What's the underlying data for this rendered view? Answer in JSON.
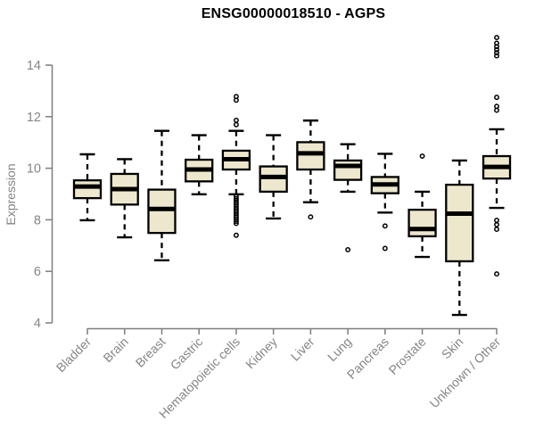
{
  "chart_data": {
    "type": "boxplot",
    "title": "ENSG00000018510 - AGPS",
    "ylabel": "Expression",
    "xlabel": "",
    "ylim": [
      4,
      15.4
    ],
    "yticks": [
      4,
      6,
      8,
      10,
      12,
      14
    ],
    "grid": "off",
    "legend": "none",
    "categories": [
      "Bladder",
      "Brain",
      "Breast",
      "Gastric",
      "Hematopoietic cells",
      "Kidney",
      "Liver",
      "Lung",
      "Pancreas",
      "Prostate",
      "Skin",
      "Unknown / Other"
    ],
    "series": [
      {
        "name": "Bladder",
        "whisker_low": 7.98,
        "q1": 8.84,
        "median": 9.29,
        "q3": 9.53,
        "whisker_high": 10.54,
        "outliers": []
      },
      {
        "name": "Brain",
        "whisker_low": 7.32,
        "q1": 8.59,
        "median": 9.19,
        "q3": 9.78,
        "whisker_high": 10.35,
        "outliers": []
      },
      {
        "name": "Breast",
        "whisker_low": 6.43,
        "q1": 7.49,
        "median": 8.42,
        "q3": 9.17,
        "whisker_high": 11.45,
        "outliers": []
      },
      {
        "name": "Gastric",
        "whisker_low": 8.99,
        "q1": 9.49,
        "median": 9.95,
        "q3": 10.33,
        "whisker_high": 11.28,
        "outliers": []
      },
      {
        "name": "Hematopoietic cells",
        "whisker_low": 8.99,
        "q1": 9.95,
        "median": 10.35,
        "q3": 10.68,
        "whisker_high": 11.45,
        "outliers": [
          12.78,
          12.64,
          11.86,
          11.69,
          8.9,
          8.82,
          8.74,
          8.66,
          8.58,
          8.5,
          8.42,
          8.34,
          8.26,
          8.18,
          8.1,
          8.02,
          7.94,
          7.86,
          7.4
        ]
      },
      {
        "name": "Kidney",
        "whisker_low": 8.05,
        "q1": 9.09,
        "median": 9.66,
        "q3": 10.07,
        "whisker_high": 11.28,
        "outliers": []
      },
      {
        "name": "Liver",
        "whisker_low": 8.68,
        "q1": 9.95,
        "median": 10.58,
        "q3": 11.01,
        "whisker_high": 11.85,
        "outliers": [
          8.11
        ]
      },
      {
        "name": "Lung",
        "whisker_low": 9.09,
        "q1": 9.55,
        "median": 10.09,
        "q3": 10.3,
        "whisker_high": 10.93,
        "outliers": [
          6.84
        ]
      },
      {
        "name": "Pancreas",
        "whisker_low": 8.28,
        "q1": 9.03,
        "median": 9.37,
        "q3": 9.66,
        "whisker_high": 10.56,
        "outliers": [
          7.76,
          6.89
        ]
      },
      {
        "name": "Prostate",
        "whisker_low": 6.56,
        "q1": 7.36,
        "median": 7.64,
        "q3": 8.39,
        "whisker_high": 9.09,
        "outliers": [
          10.47
        ]
      },
      {
        "name": "Skin",
        "whisker_low": 4.31,
        "q1": 6.39,
        "median": 8.24,
        "q3": 9.36,
        "whisker_high": 10.3,
        "outliers": []
      },
      {
        "name": "Unknown / Other",
        "whisker_low": 8.46,
        "q1": 9.6,
        "median": 10.05,
        "q3": 10.47,
        "whisker_high": 11.51,
        "outliers": [
          15.07,
          14.85,
          14.72,
          14.6,
          14.48,
          14.36,
          12.75,
          12.4,
          12.25,
          7.98,
          7.81,
          7.63,
          5.9
        ]
      }
    ],
    "colors": {
      "box_fill": "#EDE8CD",
      "box_border": "#000000",
      "median": "#000000",
      "whisker": "#000000",
      "outlier": "#000000",
      "axis": "#7E7E7E",
      "tick_label": "#858585",
      "title": "#000000",
      "background": "#FFFFFF"
    }
  }
}
